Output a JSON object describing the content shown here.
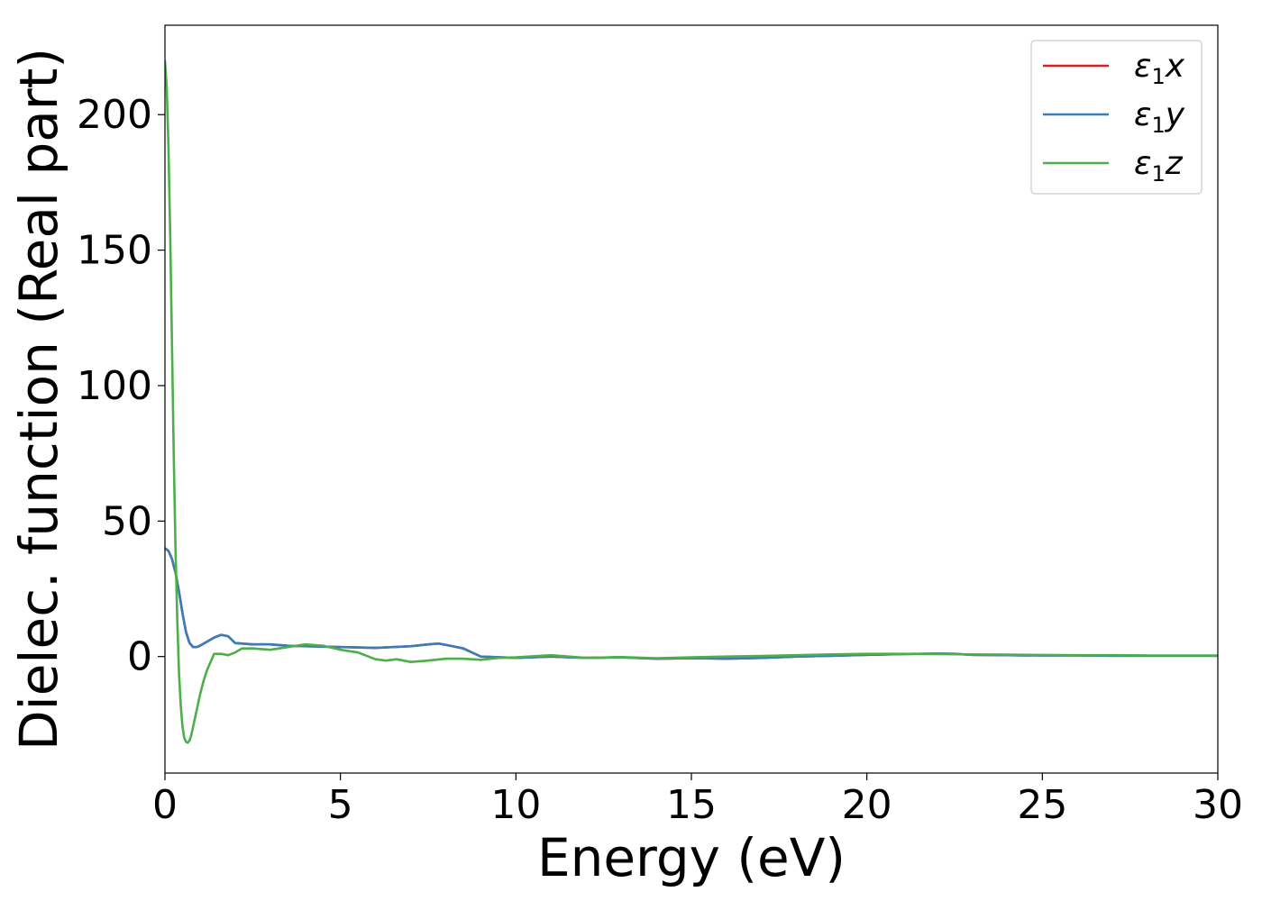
{
  "chart_data": {
    "type": "line",
    "title": "",
    "xlabel": "Energy (eV)",
    "ylabel": "Dielec. function (Real part)",
    "xlim": [
      0,
      30
    ],
    "ylim": [
      -43,
      233
    ],
    "xticks": [
      0,
      5,
      10,
      15,
      20,
      25,
      30
    ],
    "xtick_labels": [
      "0",
      "5",
      "10",
      "15",
      "20",
      "25",
      "30"
    ],
    "yticks": [
      0,
      50,
      100,
      150,
      200
    ],
    "ytick_labels": [
      "0",
      "50",
      "100",
      "150",
      "200"
    ],
    "grid": false,
    "legend_position": "top-right",
    "series": [
      {
        "name": "ε1x",
        "symbol": "ε",
        "subscript": "1",
        "component": "x",
        "color": "#e41a1c",
        "x": [
          0,
          0.1,
          0.2,
          0.3,
          0.4,
          0.5,
          0.6,
          0.7,
          0.8,
          0.9,
          1.0,
          1.2,
          1.4,
          1.6,
          1.8,
          2.0,
          2.5,
          3.0,
          3.5,
          4.0,
          5.0,
          6.0,
          7.0,
          7.5,
          7.8,
          8.2,
          8.5,
          9.0,
          10,
          11,
          12,
          13,
          14,
          15,
          16,
          17,
          18,
          19,
          20,
          21,
          22,
          22.5,
          23,
          24,
          25,
          26,
          27,
          28,
          29,
          30
        ],
        "y": [
          40,
          39,
          36,
          31,
          24,
          16,
          9,
          5,
          3.5,
          3.5,
          4,
          5.5,
          7,
          8,
          7.5,
          5,
          4.5,
          4.5,
          4,
          3.8,
          3.5,
          3.2,
          3.8,
          4.5,
          4.8,
          3.8,
          3,
          0,
          -0.5,
          0,
          -0.5,
          -0.3,
          -0.8,
          -0.6,
          -0.8,
          -0.5,
          0,
          0.3,
          0.6,
          0.9,
          1.1,
          1,
          0.6,
          0.5,
          0.4,
          0.4,
          0.3,
          0.3,
          0.3,
          0.3
        ]
      },
      {
        "name": "ε1y",
        "symbol": "ε",
        "subscript": "1",
        "component": "y",
        "color": "#377eb8",
        "x": [
          0,
          0.1,
          0.2,
          0.3,
          0.4,
          0.5,
          0.6,
          0.7,
          0.8,
          0.9,
          1.0,
          1.2,
          1.4,
          1.6,
          1.8,
          2.0,
          2.5,
          3.0,
          3.5,
          4.0,
          5.0,
          6.0,
          7.0,
          7.5,
          7.8,
          8.2,
          8.5,
          9.0,
          10,
          11,
          12,
          13,
          14,
          15,
          16,
          17,
          18,
          19,
          20,
          21,
          22,
          22.5,
          23,
          24,
          25,
          26,
          27,
          28,
          29,
          30
        ],
        "y": [
          40,
          39,
          36,
          31,
          24,
          16,
          9,
          5,
          3.5,
          3.5,
          4,
          5.5,
          7,
          8,
          7.5,
          5,
          4.5,
          4.5,
          4,
          3.8,
          3.5,
          3.2,
          3.8,
          4.5,
          4.8,
          3.8,
          3,
          0,
          -0.5,
          0,
          -0.5,
          -0.3,
          -0.8,
          -0.6,
          -0.8,
          -0.5,
          0,
          0.3,
          0.6,
          0.9,
          1.1,
          1,
          0.6,
          0.5,
          0.4,
          0.4,
          0.3,
          0.3,
          0.3,
          0.3
        ]
      },
      {
        "name": "ε1z",
        "symbol": "ε",
        "subscript": "1",
        "component": "z",
        "color": "#4daf4a",
        "x": [
          0,
          0.05,
          0.1,
          0.15,
          0.2,
          0.25,
          0.3,
          0.35,
          0.4,
          0.45,
          0.5,
          0.55,
          0.6,
          0.65,
          0.7,
          0.75,
          0.8,
          0.9,
          1.0,
          1.1,
          1.2,
          1.4,
          1.6,
          1.8,
          2.0,
          2.2,
          2.5,
          3.0,
          3.5,
          4.0,
          4.5,
          5.0,
          5.5,
          6.0,
          6.3,
          6.6,
          7.0,
          7.5,
          8.0,
          8.5,
          9.0,
          9.5,
          10,
          11,
          12,
          13,
          14,
          15,
          16,
          17,
          18,
          19,
          20,
          21,
          22,
          23,
          24,
          25,
          26,
          27,
          28,
          29,
          30
        ],
        "y": [
          220,
          210,
          188,
          155,
          115,
          75,
          40,
          14,
          -6,
          -18,
          -26,
          -30,
          -31.5,
          -31.8,
          -31,
          -29,
          -26,
          -20,
          -14,
          -9,
          -5,
          1,
          1,
          0.5,
          1.5,
          3,
          3,
          2.5,
          3.5,
          4.5,
          4,
          2.5,
          1.5,
          -1,
          -1.5,
          -1,
          -2,
          -1.5,
          -0.8,
          -0.8,
          -1.2,
          -0.5,
          -0.3,
          0.5,
          -0.5,
          -0.2,
          -0.6,
          -0.3,
          0,
          0.2,
          0.5,
          0.8,
          1,
          1,
          0.9,
          0.8,
          0.7,
          0.6,
          0.5,
          0.5,
          0.4,
          0.4,
          0.4
        ]
      }
    ]
  }
}
